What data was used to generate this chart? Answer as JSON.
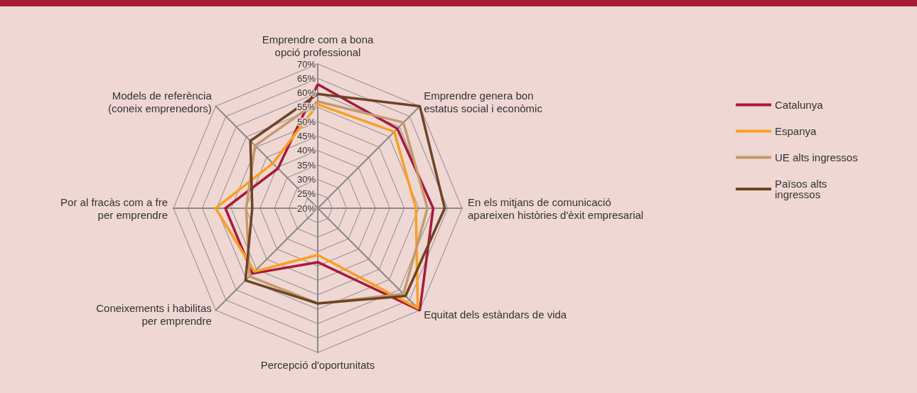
{
  "chart_data": {
    "type": "radar",
    "categories": [
      "Emprendre com a bona\nopció professional",
      "Emprendre genera bon\nestatus social i econòmic",
      "En els mitjans de comunicació\napareixen històries d'èxit empresarial",
      "Equitat dels estàndars de vida",
      "Percepció d'oportunitats",
      "Coneixements i habilitas\nper emprendre",
      "Por al fracàs com a fre\nper emprendre",
      "Models de referència\n(coneix emprenedors)"
    ],
    "series": [
      {
        "name": "Catalunya",
        "color": "#a8193a",
        "values": [
          63,
          59,
          60,
          70,
          38.7,
          52,
          52,
          39.5
        ]
      },
      {
        "name": "Espanya",
        "color": "#f7a023",
        "values": [
          56,
          57.5,
          54,
          69,
          36.2,
          51,
          55.4,
          42
        ]
      },
      {
        "name": "UE alts ingressos",
        "color": "#c49a6c",
        "values": [
          57,
          62,
          58,
          62,
          53,
          53.4,
          44.8,
          50.7
        ]
      },
      {
        "name": "Països alts ingressos",
        "color": "#6e4423",
        "values": [
          59.6,
          70,
          64,
          63,
          53,
          55.4,
          42.7,
          53
        ]
      }
    ],
    "ylim": [
      20,
      70
    ],
    "yticks": [
      {
        "value": 20,
        "label": "20%"
      },
      {
        "value": 25,
        "label": "25%"
      },
      {
        "value": 30,
        "label": "30%"
      },
      {
        "value": 35,
        "label": "35%"
      },
      {
        "value": 40,
        "label": "40%"
      },
      {
        "value": 45,
        "label": "45%"
      },
      {
        "value": 50,
        "label": "50%"
      },
      {
        "value": 55,
        "label": "55%"
      },
      {
        "value": 60,
        "label": "60%"
      },
      {
        "value": 65,
        "label": "65%"
      },
      {
        "value": 70,
        "label": "70%"
      }
    ],
    "grid": true,
    "legend": "right",
    "marker": "none"
  }
}
